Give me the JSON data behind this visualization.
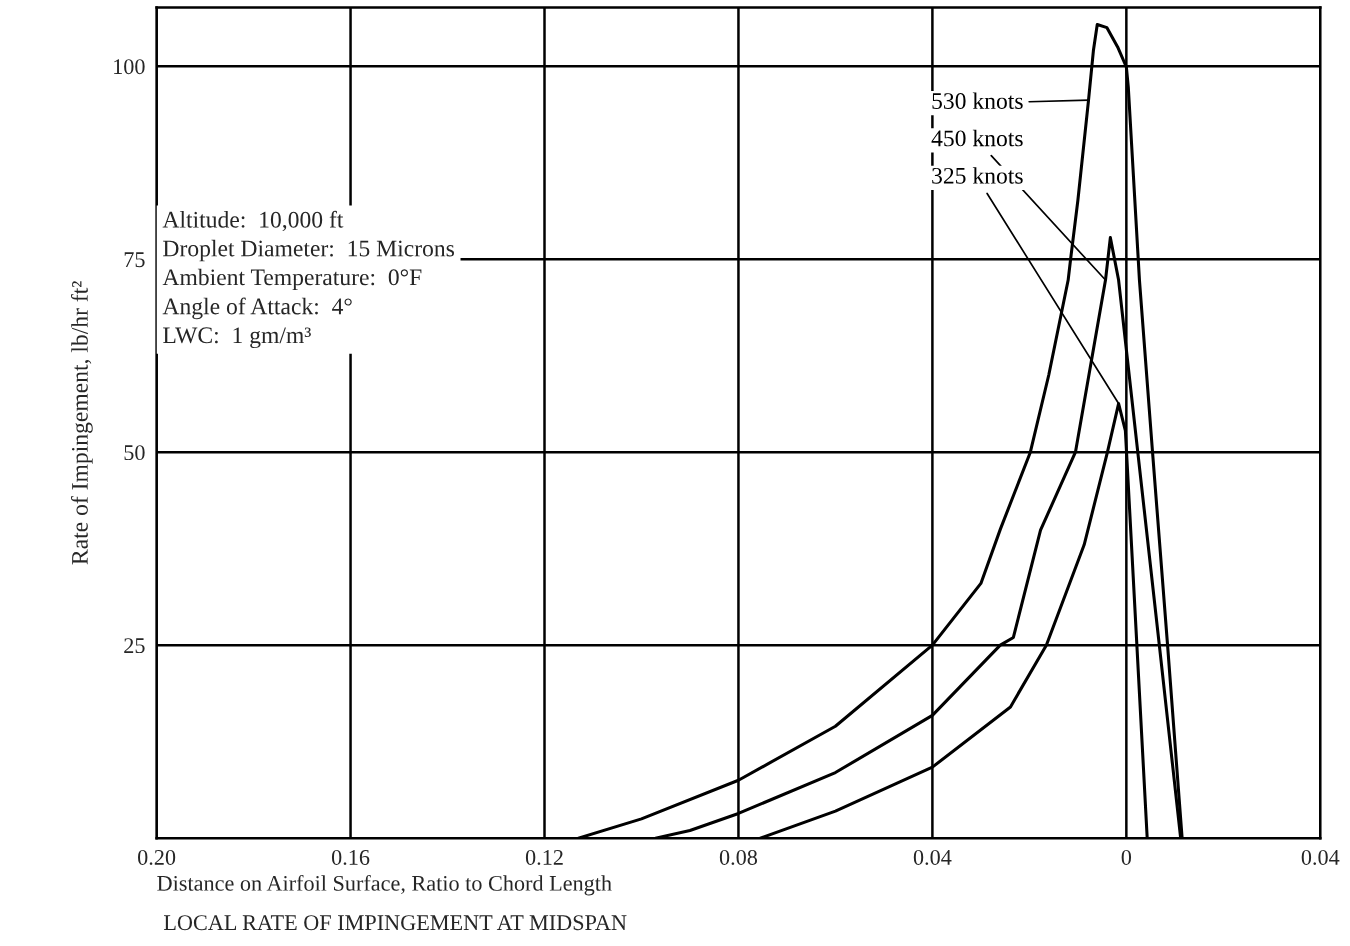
{
  "chart_data": {
    "type": "line",
    "title": "LOCAL RATE OF IMPINGEMENT AT MIDSPAN",
    "xlabel": "Distance on Airfoil Surface, Ratio to Chord Length",
    "ylabel": "Rate of Impingement, lb/hr ft²",
    "series": [
      {
        "name": "530 knots",
        "color": "#000000",
        "x": [
          -0.113,
          -0.1,
          -0.08,
          -0.06,
          -0.04,
          -0.03,
          -0.026,
          -0.0198,
          -0.016,
          -0.012,
          -0.0115,
          -0.01,
          -0.0078,
          -0.0068,
          -0.006,
          -0.004,
          -0.0018,
          0,
          0.0004,
          0.0027,
          0.0054,
          0.0085,
          0.0115
        ],
        "values": [
          0,
          2.5,
          7.5,
          14.5,
          25,
          33,
          40,
          50,
          60,
          72.3,
          75,
          82.6,
          95.6,
          102,
          105.4,
          105,
          102.5,
          99.9,
          97.3,
          72.3,
          50,
          25,
          0
        ]
      },
      {
        "name": "450 knots",
        "color": "#000000",
        "x": [
          -0.0971,
          -0.09,
          -0.08,
          -0.06,
          -0.04,
          -0.026,
          -0.0233,
          -0.0177,
          -0.0105,
          -0.0043,
          -0.0033,
          -0.0016,
          0.0068,
          0.0112
        ],
        "values": [
          0,
          1,
          3.2,
          8.5,
          15.9,
          25,
          26,
          39.9,
          50,
          72.3,
          77.8,
          72.3,
          25,
          0
        ]
      },
      {
        "name": "325 knots",
        "color": "#000000",
        "x": [
          -0.0755,
          -0.06,
          -0.04,
          -0.0239,
          -0.0165,
          -0.0087,
          -0.0039,
          -0.0016,
          -0.0002,
          0.0043
        ],
        "values": [
          0,
          3.5,
          9.2,
          17,
          25,
          38,
          50,
          56.3,
          52.8,
          0
        ]
      }
    ],
    "xlim": [
      -0.2,
      0.04
    ],
    "ylim": [
      0,
      107.6
    ],
    "xticks": [
      {
        "value": -0.2,
        "label": "0.20"
      },
      {
        "value": -0.16,
        "label": "0.16"
      },
      {
        "value": -0.12,
        "label": "0.12"
      },
      {
        "value": -0.08,
        "label": "0.08"
      },
      {
        "value": -0.04,
        "label": "0.04"
      },
      0,
      {
        "value": 0.04,
        "label": "0.04"
      }
    ],
    "yticks": [
      25,
      50,
      75,
      100
    ],
    "grid": true,
    "marker": "none",
    "line_style": "solid",
    "annotations": [
      "Altitude:  10,000 ft",
      "Droplet Diameter:  15 Microns",
      "Ambient Temperature:  0°F",
      "Angle of Attack:  4°",
      "LWC:  1 gm/m³"
    ]
  }
}
